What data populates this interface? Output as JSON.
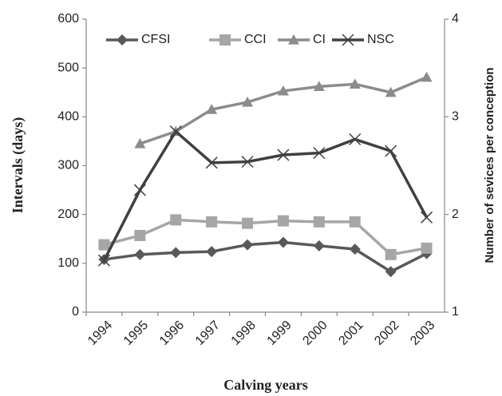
{
  "chart_data": {
    "type": "line",
    "categories": [
      "1994",
      "1995",
      "1996",
      "1997",
      "1998",
      "1999",
      "2000",
      "2001",
      "2002",
      "2003"
    ],
    "series": [
      {
        "name": "CFSI",
        "color": "#595959",
        "marker": "diamond",
        "values": [
          108,
          118,
          122,
          124,
          138,
          143,
          136,
          129,
          83,
          120
        ]
      },
      {
        "name": "CCI",
        "color": "#a6a6a6",
        "marker": "square",
        "values": [
          138,
          157,
          189,
          185,
          182,
          187,
          185,
          185,
          118,
          131
        ]
      },
      {
        "name": "CI",
        "color": "#8c8c8c",
        "marker": "triangle",
        "values": [
          null,
          345,
          370,
          415,
          430,
          453,
          462,
          467,
          450,
          481
        ]
      },
      {
        "name": "NSC",
        "color": "#404040",
        "marker": "x",
        "axis": "y2",
        "values": [
          1.53,
          2.25,
          2.85,
          2.53,
          2.54,
          2.61,
          2.63,
          2.77,
          2.65,
          1.97
        ]
      }
    ],
    "x_label": "Calving years",
    "y_label": "Intervals (days)",
    "y2_label": "Number of sevices per conception",
    "ylim": [
      0,
      600
    ],
    "yticks": [
      0,
      100,
      200,
      300,
      400,
      500,
      600
    ],
    "y2lim": [
      1,
      4
    ],
    "y2ticks": [
      1,
      2,
      3,
      4
    ],
    "grid": false,
    "legend": "top"
  }
}
